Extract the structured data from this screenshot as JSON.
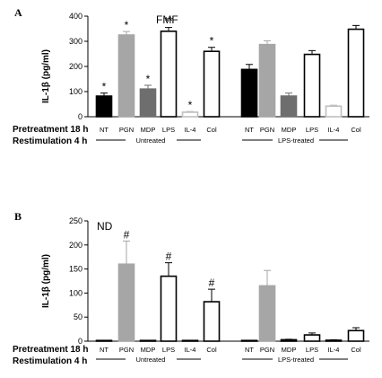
{
  "chart_data": [
    {
      "type": "bar",
      "panel": "A",
      "note": "FMF",
      "ylabel": "IL-1β  (pg/ml)",
      "ylim": [
        0,
        400
      ],
      "yticks": [
        "0",
        "100",
        "200",
        "300",
        "400"
      ],
      "categories": [
        "NT",
        "PGN",
        "MDP",
        "LPS",
        "IL-4",
        "Col",
        "NT",
        "PGN",
        "MDP",
        "LPS",
        "IL-4",
        "Col"
      ],
      "values": [
        82,
        325,
        110,
        340,
        18,
        260,
        188,
        287,
        82,
        248,
        42,
        348
      ],
      "errors": [
        12,
        14,
        15,
        15,
        3,
        16,
        20,
        15,
        12,
        15,
        4,
        15
      ],
      "fills": [
        "#000000",
        "#a6a6a6",
        "#6e6e6e",
        "#ffffff",
        "#ffffff",
        "#ffffff",
        "#000000",
        "#a6a6a6",
        "#6e6e6e",
        "#ffffff",
        "#ffffff",
        "#ffffff"
      ],
      "edges": [
        "#000000",
        "#a6a6a6",
        "#6e6e6e",
        "#000000",
        "#bfbfbf",
        "#000000",
        "#000000",
        "#a6a6a6",
        "#6e6e6e",
        "#000000",
        "#bfbfbf",
        "#000000"
      ],
      "annotations": [
        "*",
        "*",
        "*",
        "**",
        "*",
        "*",
        "",
        "",
        "",
        "",
        "",
        ""
      ],
      "groups": [
        "Untreated",
        "LPS-treated"
      ],
      "row_labels": [
        "Pretreatment 18 h",
        "Restimulation 4 h"
      ]
    },
    {
      "type": "bar",
      "panel": "B",
      "note": "ND",
      "ylabel": "IL-1β (pg/ml)",
      "ylim": [
        0,
        250
      ],
      "yticks": [
        "0",
        "50",
        "100",
        "150",
        "200",
        "250"
      ],
      "categories": [
        "NT",
        "PGN",
        "MDP",
        "LPS",
        "IL-4",
        "Col",
        "NT",
        "PGN",
        "MDP",
        "LPS",
        "IL-4",
        "Col"
      ],
      "values": [
        0,
        160,
        0,
        135,
        0,
        82,
        0,
        115,
        3,
        13,
        2,
        22
      ],
      "errors": [
        0,
        48,
        0,
        28,
        0,
        26,
        0,
        32,
        1,
        4,
        1,
        6
      ],
      "fills": [
        "#000000",
        "#a6a6a6",
        "#6e6e6e",
        "#ffffff",
        "#ffffff",
        "#ffffff",
        "#000000",
        "#a6a6a6",
        "#6e6e6e",
        "#ffffff",
        "#ffffff",
        "#ffffff"
      ],
      "edges": [
        "#000000",
        "#a6a6a6",
        "#000000",
        "#000000",
        "#000000",
        "#000000",
        "#000000",
        "#a6a6a6",
        "#000000",
        "#000000",
        "#000000",
        "#000000"
      ],
      "annotations": [
        "",
        "#",
        "",
        "#",
        "",
        "#",
        "",
        "",
        "",
        "",
        "",
        ""
      ],
      "groups": [
        "Untreated",
        "LPS-treated"
      ],
      "row_labels": [
        "Pretreatment 18 h",
        "Restimulation 4 h"
      ]
    }
  ]
}
